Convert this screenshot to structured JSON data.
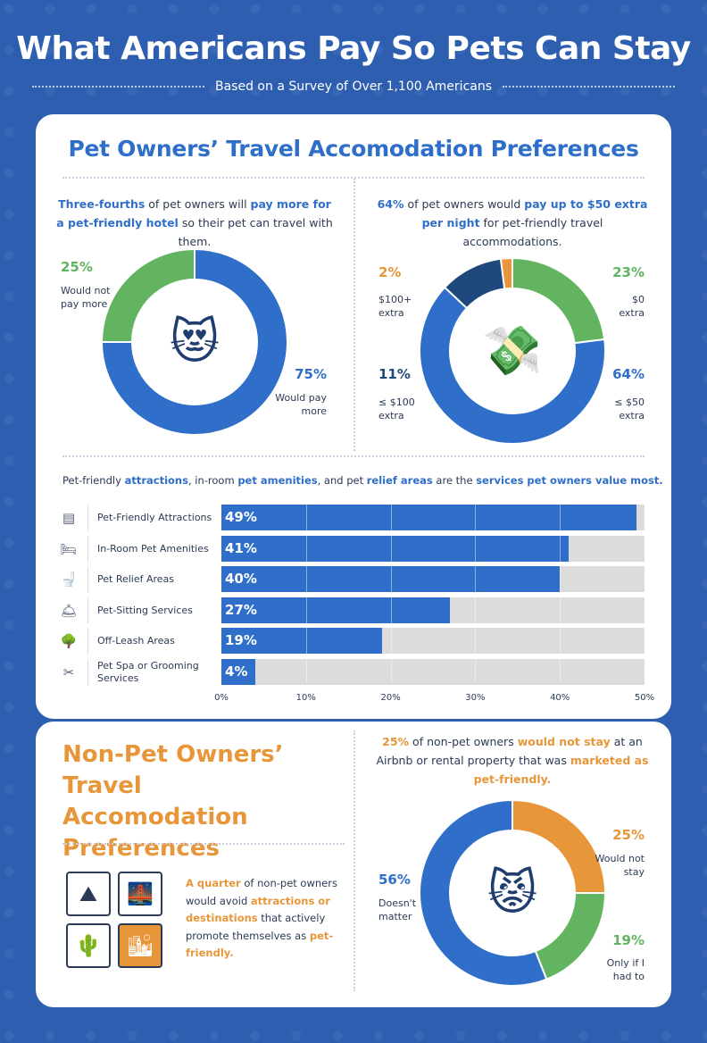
{
  "header": {
    "title": "What Americans Pay So Pets Can Stay",
    "subtitle": "Based on a Survey of Over 1,100 Americans"
  },
  "colors": {
    "blue": "#2f6fc9",
    "green": "#62b461",
    "navy": "#1f497d",
    "orange": "#e8963a",
    "track": "#dcdcdc"
  },
  "pet_owners": {
    "heading": "Pet Owners’ Travel Accomodation Preferences",
    "left": {
      "caption": [
        {
          "t": "Three-fourths",
          "hl": true
        },
        {
          "t": " of pet owners will "
        },
        {
          "t": "pay more for a pet-friendly hotel",
          "hl": true
        },
        {
          "t": " so their pet can travel with them."
        }
      ],
      "icon": "heart-eyes-cat-icon",
      "slices": [
        {
          "label": "Would pay more",
          "pct": "75%",
          "value": 75,
          "color": "#2f6fc9"
        },
        {
          "label": "Would not pay more",
          "pct": "25%",
          "value": 25,
          "color": "#62b461"
        }
      ]
    },
    "right": {
      "caption": [
        {
          "t": "64%",
          "hl": true
        },
        {
          "t": " of pet owners would "
        },
        {
          "t": "pay up to $50 extra per night",
          "hl": true
        },
        {
          "t": " for pet-friendly travel accommodations."
        }
      ],
      "icon": "flying-money-icon",
      "slices": [
        {
          "label": "$0 extra",
          "pct": "23%",
          "value": 23,
          "color": "#62b461"
        },
        {
          "label": "≤ $50 extra",
          "pct": "64%",
          "value": 64,
          "color": "#2f6fc9"
        },
        {
          "label": "≤ $100 extra",
          "pct": "11%",
          "value": 11,
          "color": "#1f497d"
        },
        {
          "label": "$100+ extra",
          "pct": "2%",
          "value": 2,
          "color": "#e8963a"
        }
      ]
    }
  },
  "chart_data": [
    {
      "type": "pie",
      "subtype": "donut",
      "categories": [
        "Would pay more",
        "Would not pay more"
      ],
      "values": [
        75,
        25
      ]
    },
    {
      "type": "pie",
      "subtype": "donut",
      "categories": [
        "$0 extra",
        "≤ $50 extra",
        "≤ $100 extra",
        "$100+ extra"
      ],
      "values": [
        23,
        64,
        11,
        2
      ]
    },
    {
      "type": "bar",
      "orientation": "horizontal",
      "categories": [
        "Pet-Friendly Attractions",
        "In-Room Pet Amenities",
        "Pet Relief Areas",
        "Pet-Sitting Services",
        "Off-Leash Areas",
        "Pet Spa or Grooming Services"
      ],
      "values": [
        49,
        41,
        40,
        27,
        19,
        4
      ],
      "xlim": [
        0,
        50
      ],
      "xticks": [
        "0%",
        "10%",
        "20%",
        "30%",
        "40%",
        "50%"
      ],
      "grid": true
    },
    {
      "type": "pie",
      "subtype": "donut",
      "categories": [
        "Would not stay",
        "Only if I had to",
        "Doesn't matter"
      ],
      "values": [
        25,
        19,
        56
      ]
    }
  ],
  "services": {
    "caption": [
      {
        "t": "Pet-friendly "
      },
      {
        "t": "attractions",
        "hl": true
      },
      {
        "t": ", in-room "
      },
      {
        "t": "pet amenities",
        "hl": true
      },
      {
        "t": ", and pet "
      },
      {
        "t": "relief areas",
        "hl": true
      },
      {
        "t": " are the "
      },
      {
        "t": "services pet owners value most.",
        "hl": true
      }
    ],
    "rows": [
      {
        "label": "Pet-Friendly Attractions",
        "pct": "49%",
        "value": 49,
        "icon": "ticket-icon",
        "glyph": "▤"
      },
      {
        "label": "In-Room Pet Amenities",
        "pct": "41%",
        "value": 41,
        "icon": "bed-icon",
        "glyph": "🛏"
      },
      {
        "label": "Pet Relief Areas",
        "pct": "40%",
        "value": 40,
        "icon": "toilet-icon",
        "glyph": "🚽"
      },
      {
        "label": "Pet-Sitting Services",
        "pct": "27%",
        "value": 27,
        "icon": "service-bell-icon",
        "glyph": "🛎"
      },
      {
        "label": "Off-Leash Areas",
        "pct": "19%",
        "value": 19,
        "icon": "tree-icon",
        "glyph": "🌳"
      },
      {
        "label": "Pet Spa or Grooming Services",
        "pct": "4%",
        "value": 4,
        "icon": "scissors-icon",
        "glyph": "✂"
      }
    ],
    "ticks": [
      "0%",
      "10%",
      "20%",
      "30%",
      "40%",
      "50%"
    ]
  },
  "non_pet": {
    "heading": "Non-Pet Owners’ Travel Accomodation Preferences",
    "caption_left": [
      {
        "t": "A quarter",
        "hl": true
      },
      {
        "t": " of non-pet owners would avoid "
      },
      {
        "t": "attractions or destinations",
        "hl": true
      },
      {
        "t": " that actively promote themselves as "
      },
      {
        "t": "pet-friendly.",
        "hl": true
      }
    ],
    "caption_right": [
      {
        "t": "25%",
        "hl": true
      },
      {
        "t": " of non-pet owners "
      },
      {
        "t": "would not stay",
        "hl": true
      },
      {
        "t": " at an Airbnb or rental property that was "
      },
      {
        "t": "marketed as pet-friendly.",
        "hl": true
      }
    ],
    "icon": "grumpy-cat-icon",
    "slices": [
      {
        "label": "Would not stay",
        "pct": "25%",
        "value": 25,
        "color": "#e8963a"
      },
      {
        "label": "Only if I had to",
        "pct": "19%",
        "value": 19,
        "color": "#62b461"
      },
      {
        "label": "Doesn't matter",
        "pct": "56%",
        "value": 56,
        "color": "#2f6fc9"
      }
    ]
  }
}
